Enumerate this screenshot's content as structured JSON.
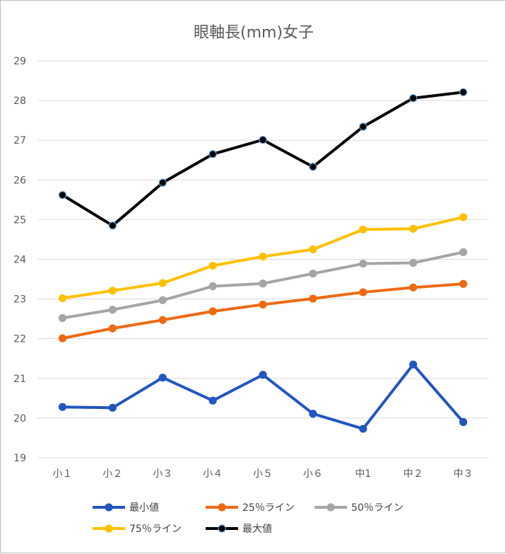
{
  "chart_data": {
    "type": "line",
    "title": "眼軸長(mm)女子",
    "xlabel": "",
    "ylabel": "",
    "categories": [
      "小１",
      "小２",
      "小３",
      "小４",
      "小５",
      "小６",
      "中1",
      "中２",
      "中３"
    ],
    "ylim": [
      19,
      29
    ],
    "yticks": [
      19,
      20,
      21,
      22,
      23,
      24,
      25,
      26,
      27,
      28,
      29
    ],
    "grid": true,
    "legend_position": "bottom",
    "series": [
      {
        "name": "最小値",
        "color": "#2155c0",
        "marker_edge": "#2155c0",
        "values": [
          20.28,
          20.26,
          21.02,
          20.44,
          21.09,
          20.11,
          19.73,
          21.35,
          19.9
        ]
      },
      {
        "name": "25％ライン",
        "color": "#ed6a13",
        "marker_edge": "#ed6a13",
        "values": [
          22.01,
          22.26,
          22.47,
          22.69,
          22.86,
          23.01,
          23.17,
          23.29,
          23.38
        ]
      },
      {
        "name": "50％ライン",
        "color": "#a5a5a5",
        "marker_edge": "#a5a5a5",
        "values": [
          22.52,
          22.73,
          22.97,
          23.32,
          23.39,
          23.64,
          23.89,
          23.91,
          24.18
        ]
      },
      {
        "name": "75％ライン",
        "color": "#ffc000",
        "marker_edge": "#ffc000",
        "values": [
          23.02,
          23.21,
          23.4,
          23.84,
          24.07,
          24.25,
          24.75,
          24.77,
          25.06
        ]
      },
      {
        "name": "最大値",
        "color": "#000000",
        "marker_edge": "#5b9bd5",
        "values": [
          25.62,
          24.85,
          25.93,
          26.65,
          27.01,
          26.33,
          27.34,
          28.06,
          28.21
        ]
      }
    ]
  }
}
